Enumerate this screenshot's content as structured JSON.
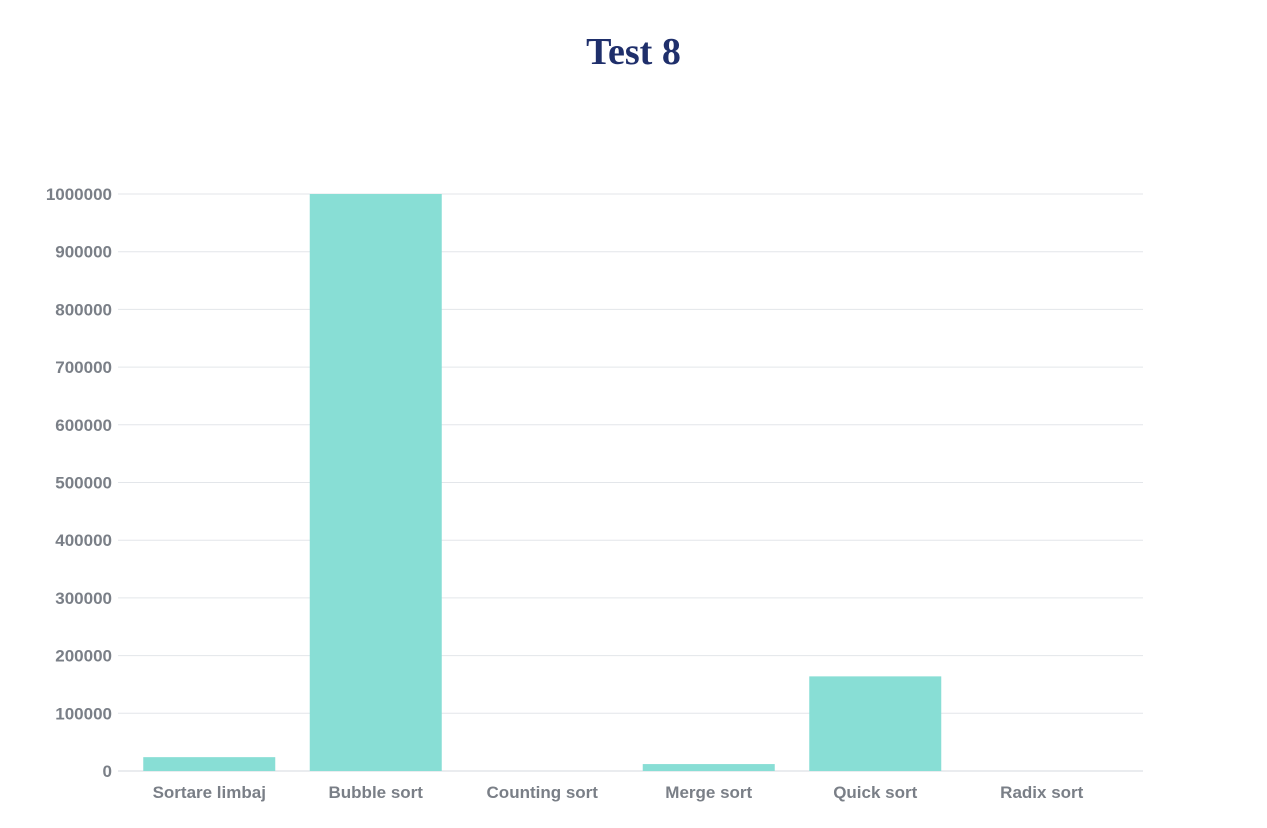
{
  "colors": {
    "bar": "#88ded5",
    "grid": "#e3e6ea",
    "axis_text": "#7a7f87",
    "title": "#1f2f6b"
  },
  "chart_data": {
    "type": "bar",
    "title": "Test 8",
    "xlabel": "",
    "ylabel": "",
    "categories": [
      "Sortare limbaj",
      "Bubble sort",
      "Counting sort",
      "Merge sort",
      "Quick sort",
      "Radix sort"
    ],
    "values": [
      24000,
      1000000,
      0,
      12000,
      164000,
      0
    ],
    "ylim": [
      0,
      1000000
    ],
    "yticks": [
      0,
      100000,
      200000,
      300000,
      400000,
      500000,
      600000,
      700000,
      800000,
      900000,
      1000000
    ],
    "ytick_labels": [
      "0",
      "100000",
      "200000",
      "300000",
      "400000",
      "500000",
      "600000",
      "700000",
      "800000",
      "900000",
      "1000000"
    ],
    "grid": true,
    "legend": "none"
  }
}
